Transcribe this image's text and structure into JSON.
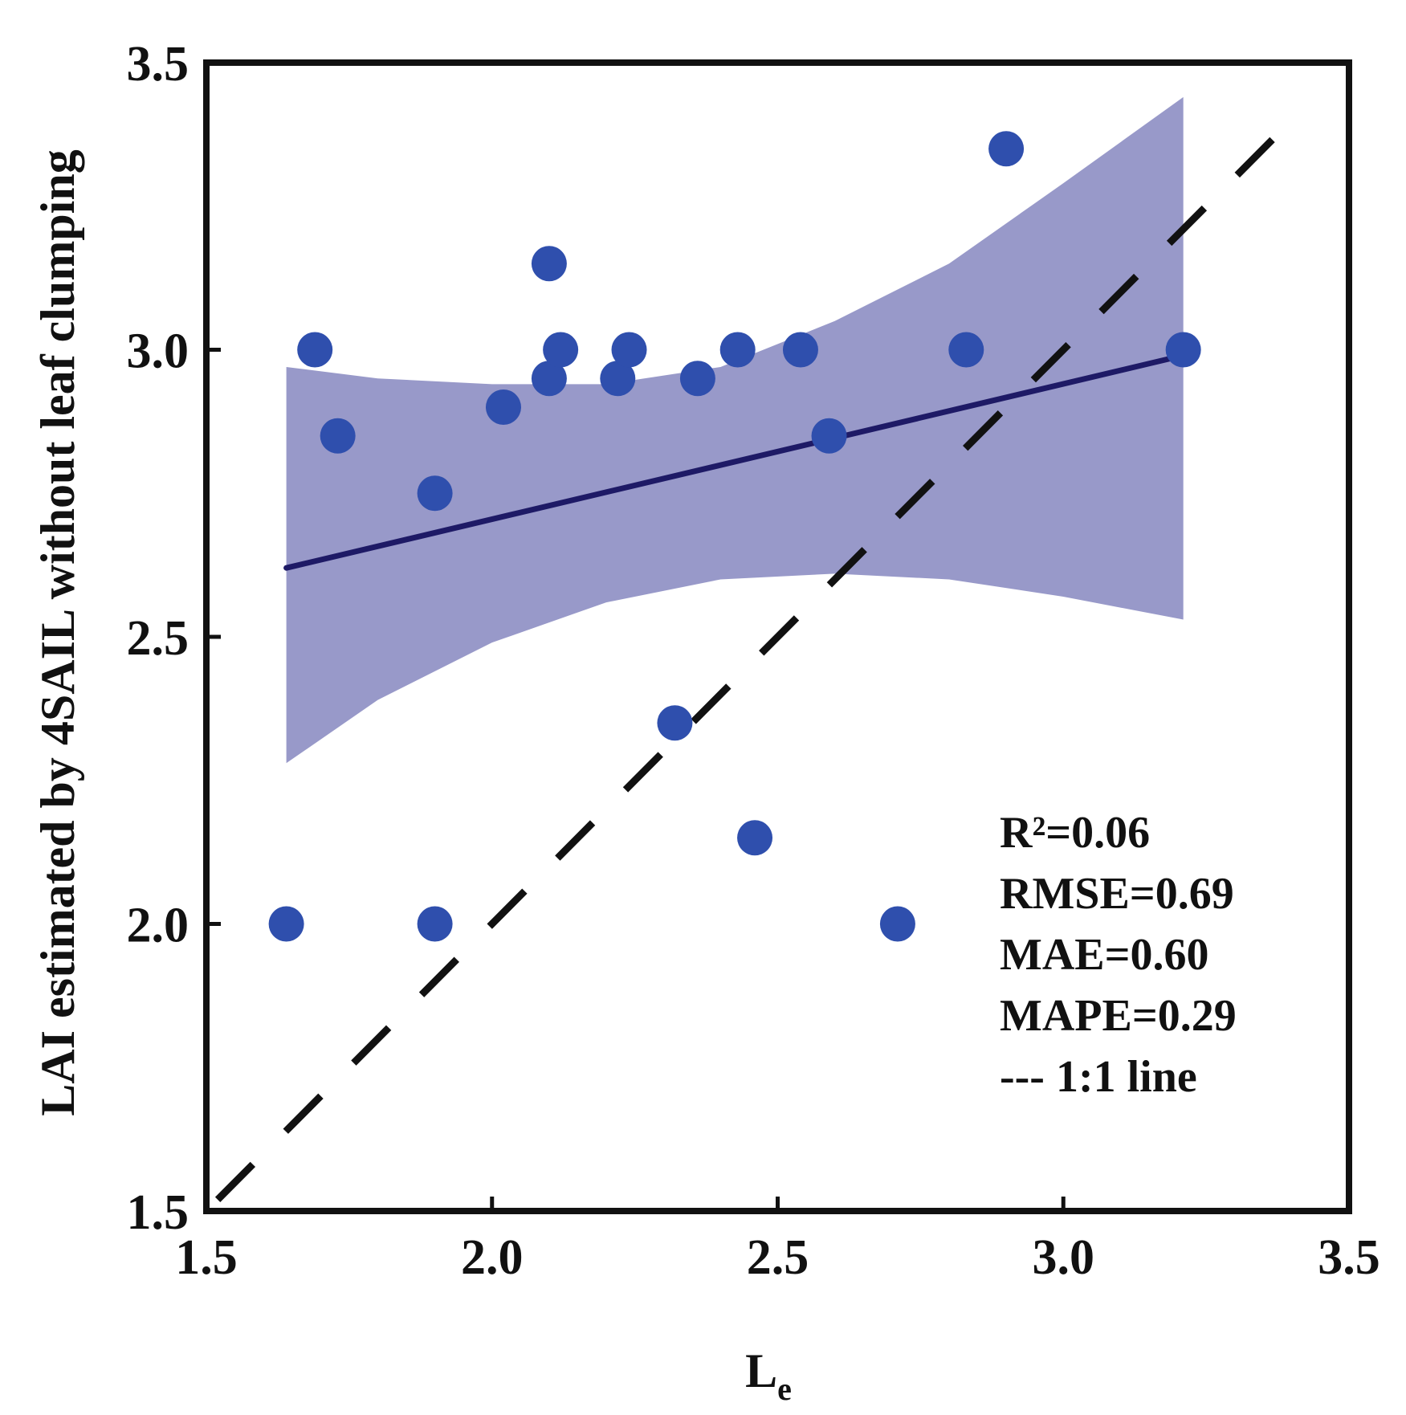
{
  "chart_data": {
    "type": "scatter",
    "xlabel": "L",
    "xlabel_sub": "e",
    "ylabel": "LAI estimated by 4SAIL without leaf clumping",
    "xlim": [
      1.5,
      3.5
    ],
    "ylim": [
      1.5,
      3.5
    ],
    "x_ticks": [
      "1.5",
      "2.0",
      "2.5",
      "3.0",
      "3.5"
    ],
    "y_ticks": [
      "1.5",
      "2.0",
      "2.5",
      "3.0",
      "3.5"
    ],
    "points": [
      {
        "x": 1.64,
        "y": 2.0
      },
      {
        "x": 1.69,
        "y": 3.0
      },
      {
        "x": 1.73,
        "y": 2.85
      },
      {
        "x": 1.9,
        "y": 2.75
      },
      {
        "x": 1.9,
        "y": 2.0
      },
      {
        "x": 2.02,
        "y": 2.9
      },
      {
        "x": 2.1,
        "y": 3.15
      },
      {
        "x": 2.1,
        "y": 2.95
      },
      {
        "x": 2.12,
        "y": 3.0
      },
      {
        "x": 2.22,
        "y": 2.95
      },
      {
        "x": 2.24,
        "y": 3.0
      },
      {
        "x": 2.32,
        "y": 2.35
      },
      {
        "x": 2.36,
        "y": 2.95
      },
      {
        "x": 2.43,
        "y": 3.0
      },
      {
        "x": 2.46,
        "y": 2.15
      },
      {
        "x": 2.54,
        "y": 3.0
      },
      {
        "x": 2.59,
        "y": 2.85
      },
      {
        "x": 2.71,
        "y": 2.0
      },
      {
        "x": 2.83,
        "y": 3.0
      },
      {
        "x": 2.9,
        "y": 3.35
      },
      {
        "x": 3.21,
        "y": 3.0
      }
    ],
    "regression_line": {
      "x": [
        1.64,
        3.21
      ],
      "y": [
        2.62,
        2.99
      ]
    },
    "confidence_band": {
      "x": [
        1.64,
        1.8,
        2.0,
        2.2,
        2.4,
        2.6,
        2.8,
        3.0,
        3.21
      ],
      "upper": [
        2.97,
        2.95,
        2.94,
        2.94,
        2.97,
        3.05,
        3.15,
        3.29,
        3.44
      ],
      "lower": [
        2.28,
        2.39,
        2.49,
        2.56,
        2.6,
        2.61,
        2.6,
        2.57,
        2.53
      ]
    },
    "one_to_one_line": {
      "x": [
        1.5,
        3.42
      ],
      "y": [
        1.5,
        3.42
      ]
    },
    "stats": [
      "R²=0.06",
      "RMSE=0.69",
      "MAE=0.60",
      "MAPE=0.29",
      "--- 1:1 line"
    ],
    "colors": {
      "points": "#2f4fad",
      "regression": "#1e1a66",
      "band": "#9899c9",
      "axis": "#111111",
      "dashed": "#111111"
    }
  }
}
